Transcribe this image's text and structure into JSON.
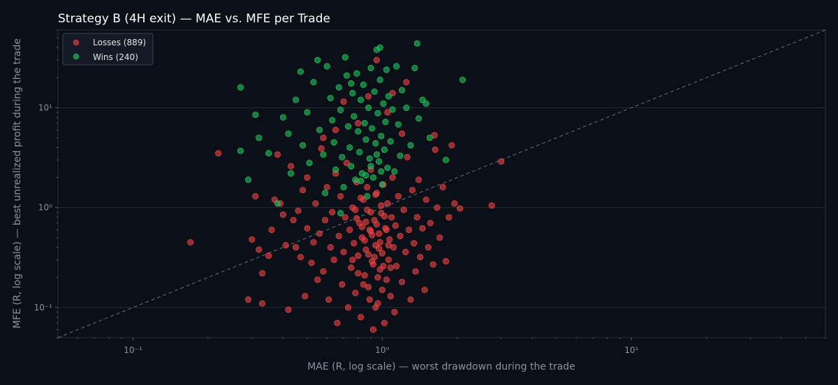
{
  "chart_data": {
    "type": "scatter",
    "title": "Strategy B (4H exit) — MAE vs. MFE per Trade",
    "xlabel": "MAE (R, log scale) — worst drawdown during the trade",
    "ylabel": "MFE (R, log scale) — best unrealized profit during the trade",
    "x_scale": "log",
    "y_scale": "log",
    "xlim": [
      0.05,
      60
    ],
    "ylim": [
      0.05,
      60
    ],
    "x_ticks": [
      {
        "value": 0.1,
        "label": "10⁻¹"
      },
      {
        "value": 1,
        "label": "10⁰"
      },
      {
        "value": 10,
        "label": "10¹"
      }
    ],
    "y_ticks": [
      {
        "value": 0.1,
        "label": "10⁻¹"
      },
      {
        "value": 1,
        "label": "10⁰"
      },
      {
        "value": 10,
        "label": "10¹"
      }
    ],
    "grid": "horizontal",
    "legend_position": "top-left",
    "reference_line": "y = x (dashed)",
    "series": [
      {
        "name": "Losses (889)",
        "color": "#ef4444",
        "points": [
          [
            0.17,
            0.45
          ],
          [
            0.22,
            3.5
          ],
          [
            0.29,
            0.12
          ],
          [
            0.3,
            0.48
          ],
          [
            0.31,
            1.3
          ],
          [
            0.32,
            0.38
          ],
          [
            0.33,
            0.22
          ],
          [
            0.33,
            0.11
          ],
          [
            0.35,
            0.33
          ],
          [
            0.36,
            0.6
          ],
          [
            0.37,
            1.2
          ],
          [
            0.38,
            3.4
          ],
          [
            0.39,
            1.1
          ],
          [
            0.4,
            0.85
          ],
          [
            0.41,
            0.42
          ],
          [
            0.42,
            0.095
          ],
          [
            0.43,
            2.6
          ],
          [
            0.44,
            0.75
          ],
          [
            0.45,
            0.4
          ],
          [
            0.46,
            0.93
          ],
          [
            0.47,
            0.32
          ],
          [
            0.48,
            1.5
          ],
          [
            0.49,
            0.13
          ],
          [
            0.5,
            0.62
          ],
          [
            0.5,
            2.0
          ],
          [
            0.52,
            0.28
          ],
          [
            0.53,
            0.45
          ],
          [
            0.54,
            1.1
          ],
          [
            0.55,
            0.19
          ],
          [
            0.56,
            0.55
          ],
          [
            0.57,
            3.9
          ],
          [
            0.58,
            0.23
          ],
          [
            0.59,
            0.75
          ],
          [
            0.6,
            1.6
          ],
          [
            0.61,
            0.12
          ],
          [
            0.62,
            0.4
          ],
          [
            0.63,
            0.9
          ],
          [
            0.64,
            0.3
          ],
          [
            0.65,
            2.2
          ],
          [
            0.66,
            0.07
          ],
          [
            0.67,
            0.52
          ],
          [
            0.68,
            1.3
          ],
          [
            0.69,
            0.17
          ],
          [
            0.7,
            0.36
          ],
          [
            0.71,
            0.8
          ],
          [
            0.72,
            2.8
          ],
          [
            0.73,
            0.1
          ],
          [
            0.74,
            0.6
          ],
          [
            0.75,
            0.25
          ],
          [
            0.76,
            1.0
          ],
          [
            0.77,
            0.44
          ],
          [
            0.78,
            0.14
          ],
          [
            0.79,
            1.8
          ],
          [
            0.8,
            0.33
          ],
          [
            0.81,
            0.7
          ],
          [
            0.82,
            0.08
          ],
          [
            0.83,
            0.5
          ],
          [
            0.84,
            1.2
          ],
          [
            0.85,
            0.21
          ],
          [
            0.86,
            0.38
          ],
          [
            0.87,
            0.95
          ],
          [
            0.88,
            0.16
          ],
          [
            0.89,
            0.6
          ],
          [
            0.9,
            2.4
          ],
          [
            0.91,
            0.29
          ],
          [
            0.92,
            0.06
          ],
          [
            0.93,
            0.75
          ],
          [
            0.94,
            0.42
          ],
          [
            0.95,
            1.4
          ],
          [
            0.96,
            0.11
          ],
          [
            0.97,
            0.55
          ],
          [
            0.98,
            0.24
          ],
          [
            0.99,
            0.88
          ],
          [
            1.0,
            0.35
          ],
          [
            1.01,
            1.7
          ],
          [
            1.02,
            0.07
          ],
          [
            1.03,
            0.62
          ],
          [
            1.04,
            0.19
          ],
          [
            1.05,
            1.1
          ],
          [
            1.06,
            0.3
          ],
          [
            1.07,
            0.48
          ],
          [
            1.08,
            0.13
          ],
          [
            1.09,
            0.8
          ],
          [
            1.1,
            2.0
          ],
          [
            1.11,
            0.4
          ],
          [
            1.12,
            0.09
          ],
          [
            1.13,
            0.66
          ],
          [
            1.14,
            0.26
          ],
          [
            1.16,
            1.3
          ],
          [
            1.18,
            0.52
          ],
          [
            1.2,
            0.18
          ],
          [
            1.22,
            0.95
          ],
          [
            1.24,
            0.36
          ],
          [
            1.26,
            3.2
          ],
          [
            1.28,
            0.6
          ],
          [
            1.3,
            0.12
          ],
          [
            1.32,
            1.5
          ],
          [
            1.34,
            0.44
          ],
          [
            1.36,
            0.23
          ],
          [
            1.38,
            0.8
          ],
          [
            1.4,
            1.9
          ],
          [
            1.42,
            0.32
          ],
          [
            1.45,
            0.62
          ],
          [
            1.48,
            0.15
          ],
          [
            1.5,
            1.2
          ],
          [
            1.53,
            0.4
          ],
          [
            1.56,
            0.7
          ],
          [
            1.6,
            0.27
          ],
          [
            1.63,
            3.8
          ],
          [
            1.66,
            1.0
          ],
          [
            1.7,
            0.5
          ],
          [
            1.75,
            1.6
          ],
          [
            1.8,
            0.29
          ],
          [
            1.85,
            0.8
          ],
          [
            1.9,
            4.2
          ],
          [
            1.95,
            1.1
          ],
          [
            2.05,
            0.98
          ],
          [
            2.75,
            1.05
          ],
          [
            3.0,
            2.9
          ],
          [
            1.62,
            5.3
          ],
          [
            1.25,
            18
          ],
          [
            0.95,
            30
          ],
          [
            0.88,
            13
          ],
          [
            1.05,
            9
          ],
          [
            0.8,
            7
          ],
          [
            0.65,
            6
          ],
          [
            1.2,
            5.5
          ],
          [
            0.58,
            5
          ],
          [
            0.7,
            11.5
          ],
          [
            1.1,
            14
          ],
          [
            0.78,
            0.95
          ],
          [
            0.82,
            1.25
          ],
          [
            0.86,
            0.72
          ],
          [
            0.9,
            0.58
          ],
          [
            0.94,
            1.35
          ],
          [
            0.98,
            0.45
          ],
          [
            1.02,
            0.82
          ],
          [
            0.88,
            0.34
          ],
          [
            0.92,
            0.27
          ],
          [
            0.96,
            0.2
          ],
          [
            1.0,
            0.15
          ],
          [
            0.84,
            0.17
          ],
          [
            0.8,
            0.22
          ],
          [
            0.76,
            0.3
          ],
          [
            1.06,
            0.42
          ],
          [
            1.04,
            0.6
          ],
          [
            0.9,
            0.9
          ],
          [
            0.95,
            0.68
          ],
          [
            0.99,
            1.05
          ],
          [
            0.87,
            1.6
          ],
          [
            1.08,
            0.25
          ],
          [
            0.93,
            0.32
          ],
          [
            0.97,
            0.39
          ],
          [
            0.85,
            0.47
          ],
          [
            0.91,
            0.53
          ],
          [
            0.83,
            0.64
          ],
          [
            0.79,
            0.78
          ],
          [
            1.01,
            0.26
          ],
          [
            0.89,
            0.12
          ],
          [
            0.94,
            0.1
          ]
        ]
      },
      {
        "name": "Wins (240)",
        "color": "#22c55e",
        "points": [
          [
            0.27,
            16
          ],
          [
            0.27,
            3.7
          ],
          [
            0.29,
            1.9
          ],
          [
            0.31,
            8.5
          ],
          [
            0.32,
            5
          ],
          [
            0.35,
            3.5
          ],
          [
            0.38,
            1.1
          ],
          [
            0.4,
            8
          ],
          [
            0.42,
            5.5
          ],
          [
            0.43,
            2.2
          ],
          [
            0.45,
            12
          ],
          [
            0.47,
            23
          ],
          [
            0.48,
            4.2
          ],
          [
            0.5,
            9
          ],
          [
            0.51,
            2.8
          ],
          [
            0.53,
            18
          ],
          [
            0.55,
            30
          ],
          [
            0.56,
            6
          ],
          [
            0.58,
            3.4
          ],
          [
            0.59,
            1.4
          ],
          [
            0.6,
            26
          ],
          [
            0.62,
            12.5
          ],
          [
            0.63,
            7.5
          ],
          [
            0.64,
            4.5
          ],
          [
            0.65,
            2.4
          ],
          [
            0.67,
            16
          ],
          [
            0.68,
            9.5
          ],
          [
            0.69,
            3.2
          ],
          [
            0.7,
            1.6
          ],
          [
            0.71,
            32
          ],
          [
            0.72,
            21
          ],
          [
            0.73,
            6.5
          ],
          [
            0.74,
            4
          ],
          [
            0.75,
            2.6
          ],
          [
            0.76,
            14
          ],
          [
            0.77,
            8.2
          ],
          [
            0.78,
            1.9
          ],
          [
            0.79,
            22
          ],
          [
            0.8,
            5.8
          ],
          [
            0.81,
            3.6
          ],
          [
            0.82,
            12
          ],
          [
            0.83,
            2.2
          ],
          [
            0.84,
            17
          ],
          [
            0.85,
            7
          ],
          [
            0.86,
            4.8
          ],
          [
            0.87,
            1.3
          ],
          [
            0.88,
            10
          ],
          [
            0.89,
            3.1
          ],
          [
            0.9,
            25
          ],
          [
            0.91,
            6.2
          ],
          [
            0.92,
            2
          ],
          [
            0.93,
            14.5
          ],
          [
            0.94,
            4.4
          ],
          [
            0.95,
            38
          ],
          [
            0.96,
            8.8
          ],
          [
            0.97,
            2.9
          ],
          [
            0.98,
            19
          ],
          [
            0.99,
            5.2
          ],
          [
            1.0,
            1.7
          ],
          [
            1.01,
            11
          ],
          [
            1.02,
            3.8
          ],
          [
            1.03,
            7.2
          ],
          [
            1.04,
            24
          ],
          [
            1.05,
            2.5
          ],
          [
            1.06,
            13
          ],
          [
            1.08,
            4.6
          ],
          [
            1.1,
            9.6
          ],
          [
            1.12,
            2.3
          ],
          [
            1.14,
            26
          ],
          [
            1.16,
            6.8
          ],
          [
            1.18,
            3.3
          ],
          [
            1.2,
            15
          ],
          [
            1.25,
            10
          ],
          [
            1.3,
            4.2
          ],
          [
            1.35,
            25
          ],
          [
            1.4,
            7.8
          ],
          [
            1.45,
            12
          ],
          [
            1.5,
            11
          ],
          [
            1.55,
            5
          ],
          [
            1.8,
            3
          ],
          [
            2.1,
            19
          ],
          [
            1.38,
            44
          ],
          [
            0.98,
            40
          ],
          [
            0.75,
            17.5
          ],
          [
            0.68,
            0.88
          ],
          [
            0.82,
            1.85
          ],
          [
            0.9,
            2.6
          ],
          [
            0.95,
            3.4
          ],
          [
            0.86,
            2.1
          ],
          [
            0.99,
            2.3
          ]
        ]
      }
    ]
  }
}
